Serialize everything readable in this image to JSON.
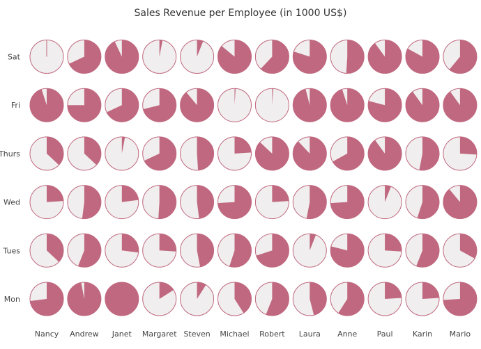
{
  "chart_data": {
    "type": "pie-grid",
    "title": "Sales Revenue per Employee (in 1000 US$)",
    "x_categories": [
      "Nancy",
      "Andrew",
      "Janet",
      "Margaret",
      "Steven",
      "Michael",
      "Robert",
      "Laura",
      "Anne",
      "Paul",
      "Karin",
      "Mario"
    ],
    "y_categories": [
      "Mon",
      "Tues",
      "Wed",
      "Thurs",
      "Fri",
      "Sat"
    ],
    "value_unit": "fraction of full circle (filled slice)",
    "values": {
      "Sat": [
        0.0,
        0.68,
        0.93,
        0.03,
        0.06,
        0.86,
        0.62,
        0.8,
        0.51,
        0.9,
        0.83,
        0.61
      ],
      "Fri": [
        0.95,
        0.75,
        0.68,
        0.71,
        0.89,
        0.01,
        0.01,
        0.96,
        0.95,
        0.79,
        0.9,
        0.9
      ],
      "Thurs": [
        0.37,
        0.37,
        0.03,
        0.68,
        0.49,
        0.24,
        0.87,
        0.88,
        0.67,
        0.9,
        0.53,
        0.26
      ],
      "Wed": [
        0.24,
        0.52,
        0.23,
        0.51,
        0.48,
        0.74,
        0.24,
        0.53,
        0.74,
        0.06,
        0.55,
        0.89
      ],
      "Tues": [
        0.37,
        0.56,
        0.27,
        0.26,
        0.47,
        0.55,
        0.7,
        0.06,
        0.79,
        0.26,
        0.56,
        0.33
      ],
      "Mon": [
        0.73,
        0.97,
        1.0,
        0.16,
        0.09,
        0.41,
        0.56,
        0.46,
        0.59,
        0.24,
        0.24,
        0.74
      ]
    },
    "colors": {
      "filled": "#c0687f",
      "empty": "#f0eeee",
      "border": "#c0687f"
    },
    "legend": "none",
    "grid": false
  }
}
